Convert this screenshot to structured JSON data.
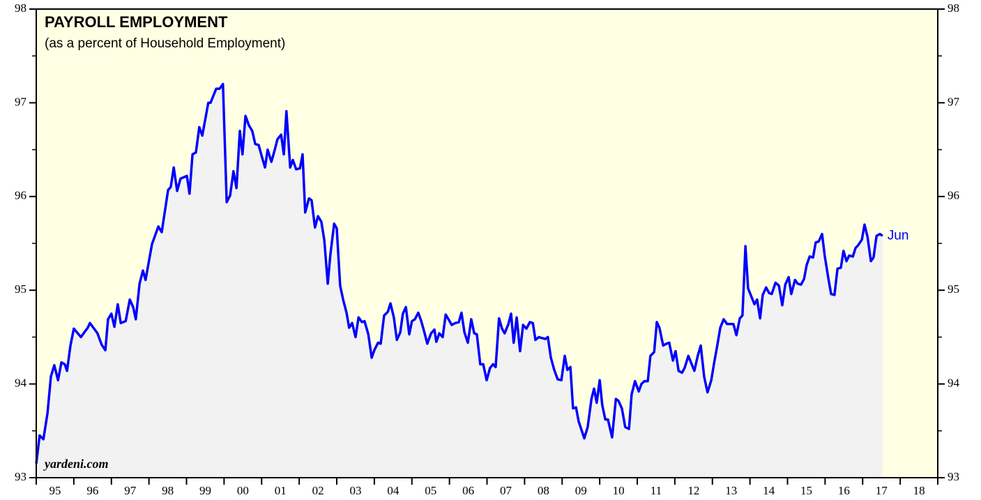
{
  "chart_data": {
    "type": "line",
    "title": "PAYROLL EMPLOYMENT",
    "subtitle": "(as a percent of Household Employment)",
    "source": "yardeni.com",
    "annotation": "Jun",
    "xlim": [
      1995,
      2019
    ],
    "ylim": [
      93,
      98
    ],
    "yticks": [
      93,
      94,
      95,
      96,
      97,
      98
    ],
    "yminor": [
      93.5,
      94.5,
      95.5,
      96.5,
      97.5
    ],
    "xticks": [
      1995,
      1996,
      1997,
      1998,
      1999,
      2000,
      2001,
      2002,
      2003,
      2004,
      2005,
      2006,
      2007,
      2008,
      2009,
      2010,
      2011,
      2012,
      2013,
      2014,
      2015,
      2016,
      2017,
      2018,
      2019
    ],
    "xtick_labels": [
      {
        "value": 1995.5,
        "label": "95"
      },
      {
        "value": 1996.5,
        "label": "96"
      },
      {
        "value": 1997.5,
        "label": "97"
      },
      {
        "value": 1998.5,
        "label": "98"
      },
      {
        "value": 1999.5,
        "label": "99"
      },
      {
        "value": 2000.5,
        "label": "00"
      },
      {
        "value": 2001.5,
        "label": "01"
      },
      {
        "value": 2002.5,
        "label": "02"
      },
      {
        "value": 2003.5,
        "label": "03"
      },
      {
        "value": 2004.5,
        "label": "04"
      },
      {
        "value": 2005.5,
        "label": "05"
      },
      {
        "value": 2006.5,
        "label": "06"
      },
      {
        "value": 2007.5,
        "label": "07"
      },
      {
        "value": 2008.5,
        "label": "08"
      },
      {
        "value": 2009.5,
        "label": "09"
      },
      {
        "value": 2010.5,
        "label": "10"
      },
      {
        "value": 2011.5,
        "label": "11"
      },
      {
        "value": 2012.5,
        "label": "12"
      },
      {
        "value": 2013.5,
        "label": "13"
      },
      {
        "value": 2014.5,
        "label": "14"
      },
      {
        "value": 2015.5,
        "label": "15"
      },
      {
        "value": 2016.5,
        "label": "16"
      },
      {
        "value": 2017.5,
        "label": "17"
      },
      {
        "value": 2018.5,
        "label": "18"
      }
    ],
    "plot_background": "#ffffe3",
    "area_color": "#f2f2f2",
    "x": [
      1995.0,
      1995.09,
      1995.19,
      1995.3,
      1995.39,
      1995.48,
      1995.58,
      1995.67,
      1995.76,
      1995.82,
      1995.91,
      1996.0,
      1996.19,
      1996.37,
      1996.43,
      1996.63,
      1996.74,
      1996.84,
      1996.91,
      1997.0,
      1997.08,
      1997.17,
      1997.25,
      1997.38,
      1997.49,
      1997.58,
      1997.65,
      1997.75,
      1997.84,
      1997.91,
      1998.08,
      1998.25,
      1998.34,
      1998.51,
      1998.58,
      1998.66,
      1998.75,
      1998.84,
      1999.01,
      1999.08,
      1999.16,
      1999.25,
      1999.34,
      1999.42,
      1999.58,
      1999.64,
      1999.79,
      1999.88,
      1999.97,
      2000.07,
      2000.16,
      2000.25,
      2000.33,
      2000.42,
      2000.49,
      2000.57,
      2000.66,
      2000.75,
      2000.83,
      2000.92,
      2001.01,
      2001.09,
      2001.16,
      2001.26,
      2001.35,
      2001.42,
      2001.52,
      2001.59,
      2001.66,
      2001.76,
      2001.83,
      2001.92,
      2002.02,
      2002.09,
      2002.16,
      2002.26,
      2002.33,
      2002.42,
      2002.5,
      2002.59,
      2002.67,
      2002.76,
      2002.83,
      2002.93,
      2003.0,
      2003.09,
      2003.17,
      2003.26,
      2003.33,
      2003.41,
      2003.5,
      2003.58,
      2003.67,
      2003.74,
      2003.84,
      2003.93,
      2004.0,
      2004.1,
      2004.17,
      2004.26,
      2004.36,
      2004.43,
      2004.52,
      2004.6,
      2004.69,
      2004.76,
      2004.84,
      2004.93,
      2005.0,
      2005.08,
      2005.17,
      2005.25,
      2005.34,
      2005.41,
      2005.51,
      2005.6,
      2005.65,
      2005.73,
      2005.82,
      2005.9,
      2005.99,
      2006.06,
      2006.16,
      2006.25,
      2006.32,
      2006.4,
      2006.49,
      2006.58,
      2006.66,
      2006.73,
      2006.82,
      2006.9,
      2006.99,
      2007.08,
      2007.16,
      2007.23,
      2007.32,
      2007.4,
      2007.47,
      2007.57,
      2007.64,
      2007.71,
      2007.79,
      2007.88,
      2007.96,
      2008.05,
      2008.14,
      2008.22,
      2008.29,
      2008.38,
      2008.46,
      2008.55,
      2008.62,
      2008.7,
      2008.79,
      2008.88,
      2008.98,
      2009.07,
      2009.14,
      2009.22,
      2009.29,
      2009.37,
      2009.44,
      2009.59,
      2009.68,
      2009.78,
      2009.85,
      2009.92,
      2010.0,
      2010.07,
      2010.15,
      2010.22,
      2010.33,
      2010.43,
      2010.5,
      2010.59,
      2010.68,
      2010.78,
      2010.85,
      2010.94,
      2011.04,
      2011.11,
      2011.19,
      2011.28,
      2011.35,
      2011.45,
      2011.52,
      2011.59,
      2011.69,
      2011.78,
      2011.85,
      2011.95,
      2012.02,
      2012.1,
      2012.19,
      2012.26,
      2012.36,
      2012.43,
      2012.52,
      2012.61,
      2012.69,
      2012.78,
      2012.87,
      2012.97,
      2013.04,
      2013.13,
      2013.21,
      2013.3,
      2013.39,
      2013.49,
      2013.56,
      2013.64,
      2013.73,
      2013.8,
      2013.88,
      2013.95,
      2014.04,
      2014.12,
      2014.19,
      2014.27,
      2014.34,
      2014.43,
      2014.51,
      2014.58,
      2014.68,
      2014.77,
      2014.86,
      2014.94,
      2015.03,
      2015.1,
      2015.2,
      2015.27,
      2015.36,
      2015.44,
      2015.51,
      2015.59,
      2015.68,
      2015.75,
      2015.83,
      2015.92,
      2015.99,
      2016.09,
      2016.16,
      2016.25,
      2016.33,
      2016.42,
      2016.49,
      2016.57,
      2016.64,
      2016.74,
      2016.81,
      2016.88,
      2016.98,
      2017.05,
      2017.13,
      2017.22,
      2017.29,
      2017.37,
      2017.46,
      2017.53
    ],
    "series": [
      {
        "name": "Payroll Employment",
        "color": "#0000ff",
        "values": [
          93.15,
          93.45,
          93.41,
          93.69,
          94.08,
          94.2,
          94.04,
          94.23,
          94.21,
          94.14,
          94.41,
          94.59,
          94.5,
          94.6,
          94.65,
          94.54,
          94.42,
          94.36,
          94.69,
          94.75,
          94.61,
          94.85,
          94.65,
          94.67,
          94.9,
          94.82,
          94.69,
          95.07,
          95.21,
          95.11,
          95.49,
          95.68,
          95.62,
          96.07,
          96.1,
          96.31,
          96.06,
          96.19,
          96.22,
          96.03,
          96.45,
          96.47,
          96.74,
          96.65,
          97.0,
          97.0,
          97.15,
          97.15,
          97.2,
          95.94,
          96.01,
          96.27,
          96.09,
          96.7,
          96.45,
          96.86,
          96.76,
          96.7,
          96.56,
          96.55,
          96.42,
          96.31,
          96.5,
          96.37,
          96.5,
          96.61,
          96.66,
          96.45,
          96.91,
          96.31,
          96.39,
          96.29,
          96.3,
          96.45,
          95.83,
          95.98,
          95.96,
          95.67,
          95.79,
          95.73,
          95.53,
          95.07,
          95.38,
          95.71,
          95.66,
          95.05,
          94.9,
          94.76,
          94.6,
          94.65,
          94.5,
          94.71,
          94.66,
          94.67,
          94.53,
          94.28,
          94.36,
          94.44,
          94.43,
          94.73,
          94.77,
          94.86,
          94.71,
          94.47,
          94.55,
          94.75,
          94.82,
          94.53,
          94.67,
          94.69,
          94.76,
          94.67,
          94.54,
          94.43,
          94.54,
          94.58,
          94.45,
          94.54,
          94.5,
          94.74,
          94.68,
          94.63,
          94.65,
          94.66,
          94.76,
          94.55,
          94.44,
          94.69,
          94.54,
          94.53,
          94.21,
          94.21,
          94.04,
          94.17,
          94.21,
          94.18,
          94.7,
          94.59,
          94.54,
          94.64,
          94.75,
          94.44,
          94.71,
          94.35,
          94.63,
          94.59,
          94.66,
          94.65,
          94.47,
          94.5,
          94.49,
          94.48,
          94.5,
          94.28,
          94.15,
          94.05,
          94.04,
          94.3,
          94.15,
          94.18,
          93.74,
          93.75,
          93.6,
          93.42,
          93.54,
          93.84,
          93.95,
          93.8,
          94.04,
          93.77,
          93.62,
          93.62,
          93.43,
          93.84,
          93.82,
          93.74,
          93.54,
          93.52,
          93.89,
          94.03,
          93.92,
          94.0,
          94.03,
          94.03,
          94.3,
          94.34,
          94.66,
          94.6,
          94.41,
          94.43,
          94.44,
          94.25,
          94.35,
          94.14,
          94.12,
          94.17,
          94.3,
          94.23,
          94.14,
          94.3,
          94.41,
          94.08,
          93.91,
          94.04,
          94.21,
          94.41,
          94.6,
          94.69,
          94.64,
          94.64,
          94.64,
          94.52,
          94.7,
          94.73,
          95.47,
          95.02,
          94.93,
          94.85,
          94.9,
          94.7,
          94.95,
          95.03,
          94.97,
          94.96,
          95.08,
          95.05,
          94.84,
          95.06,
          95.14,
          94.96,
          95.11,
          95.07,
          95.06,
          95.12,
          95.27,
          95.36,
          95.35,
          95.51,
          95.52,
          95.6,
          95.37,
          95.12,
          94.96,
          94.95,
          95.23,
          95.24,
          95.42,
          95.31,
          95.37,
          95.36,
          95.45,
          95.48,
          95.54,
          95.7,
          95.57,
          95.31,
          95.35,
          95.58,
          95.6,
          95.58
        ]
      }
    ]
  }
}
